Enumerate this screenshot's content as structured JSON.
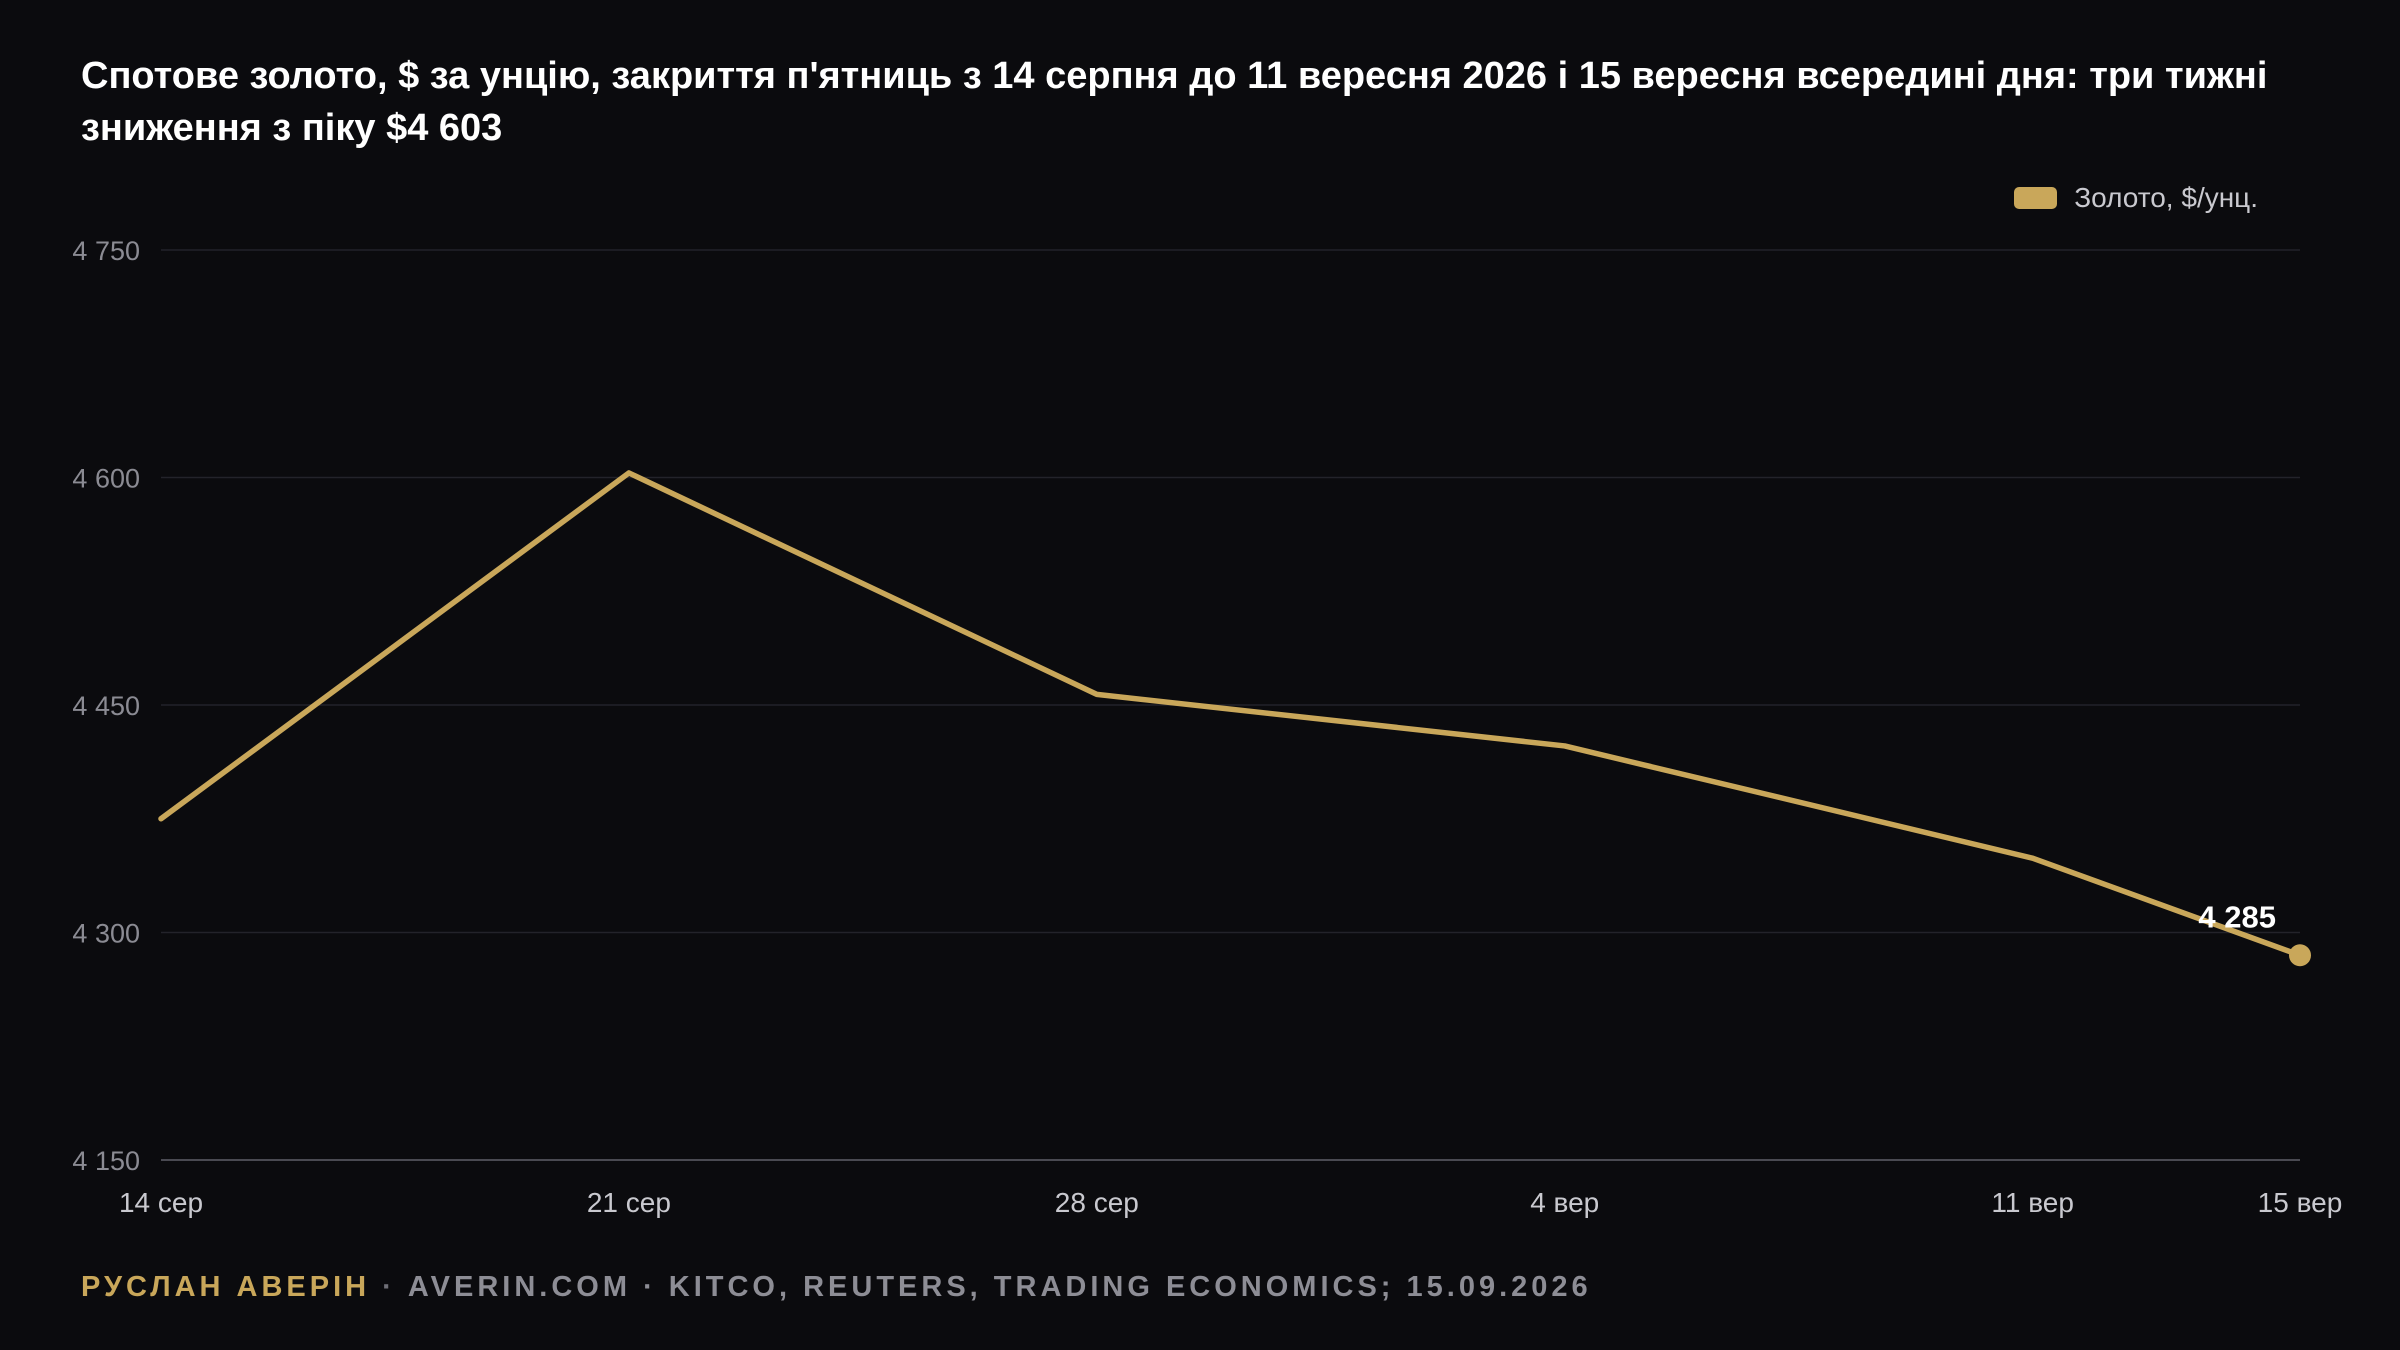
{
  "title": "Спотове золото, $ за унцію, закриття п'ятниць з 14 серпня до 11 вересня 2026 і 15 вересня всередині дня: три тижні зниження з піку $4 603",
  "legend": {
    "label": "Золото, $/унц.",
    "color": "#c9a75a"
  },
  "footer": {
    "author": "РУСЛАН АВЕРІН",
    "separator": " · ",
    "rest": "AVERIN.COM · KITCO, REUTERS, TRADING ECONOMICS; 15.09.2026"
  },
  "chart_data": {
    "type": "line",
    "title": "Спотове золото, $ за унцію, закриття п'ятниць з 14 серпня до 11 вересня 2026 і 15 вересня всередині дня: три тижні зниження з піку $4 603",
    "x": [
      "14 сер",
      "21 сер",
      "28 сер",
      "4 вер",
      "11 вер",
      "15 вер"
    ],
    "x_position_days": [
      0,
      7,
      14,
      21,
      28,
      32
    ],
    "series": [
      {
        "name": "Золото, $/унц.",
        "color": "#c9a75a",
        "values": [
          4375,
          4603,
          4457,
          4423,
          4349,
          4285
        ]
      }
    ],
    "ylim": [
      4150,
      4750
    ],
    "yticks": [
      4150,
      4300,
      4450,
      4600,
      4750
    ],
    "ytick_labels": [
      "4 150",
      "4 300",
      "4 450",
      "4 600",
      "4 750"
    ],
    "grid": true,
    "legend_position": "top-right",
    "end_label": "4 285"
  }
}
